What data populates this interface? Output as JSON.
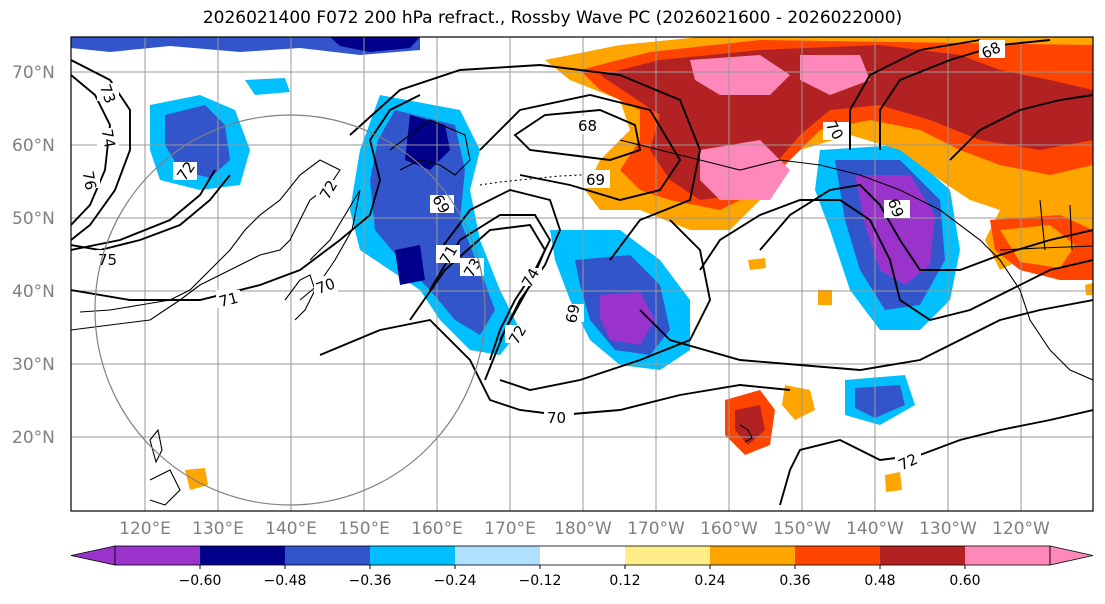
{
  "title": "2026021400 F072 200 hPa refract., Rossby Wave PC (2026021600 - 2026022000)",
  "latitudes": [
    "70°N",
    "60°N",
    "50°N",
    "40°N",
    "30°N",
    "20°N"
  ],
  "longitudes": [
    "120°E",
    "130°E",
    "140°E",
    "150°E",
    "160°E",
    "170°E",
    "180°W",
    "170°W",
    "160°W",
    "150°W",
    "140°W",
    "130°W",
    "120°W"
  ],
  "colorbar": {
    "colors": [
      "#9933cc",
      "#00008b",
      "#3355cc",
      "#00bfff",
      "#b0e0ff",
      "#ffffff",
      "#ffee88",
      "#ffa500",
      "#ff4400",
      "#b22222",
      "#ff88bb"
    ],
    "tick_labels": [
      "−0.60",
      "−0.48",
      "−0.36",
      "−0.24",
      "−0.12",
      "0.12",
      "0.24",
      "0.36",
      "0.48",
      "0.60"
    ]
  },
  "contour_labels": [
    "73",
    "74",
    "76",
    "72",
    "75",
    "71",
    "72",
    "70",
    "71",
    "69",
    "73",
    "74",
    "72",
    "69",
    "68",
    "69",
    "70",
    "70",
    "69",
    "72",
    "68"
  ],
  "colors": {
    "contour": "#000000",
    "grid": "#999999",
    "coast": "#000000"
  }
}
